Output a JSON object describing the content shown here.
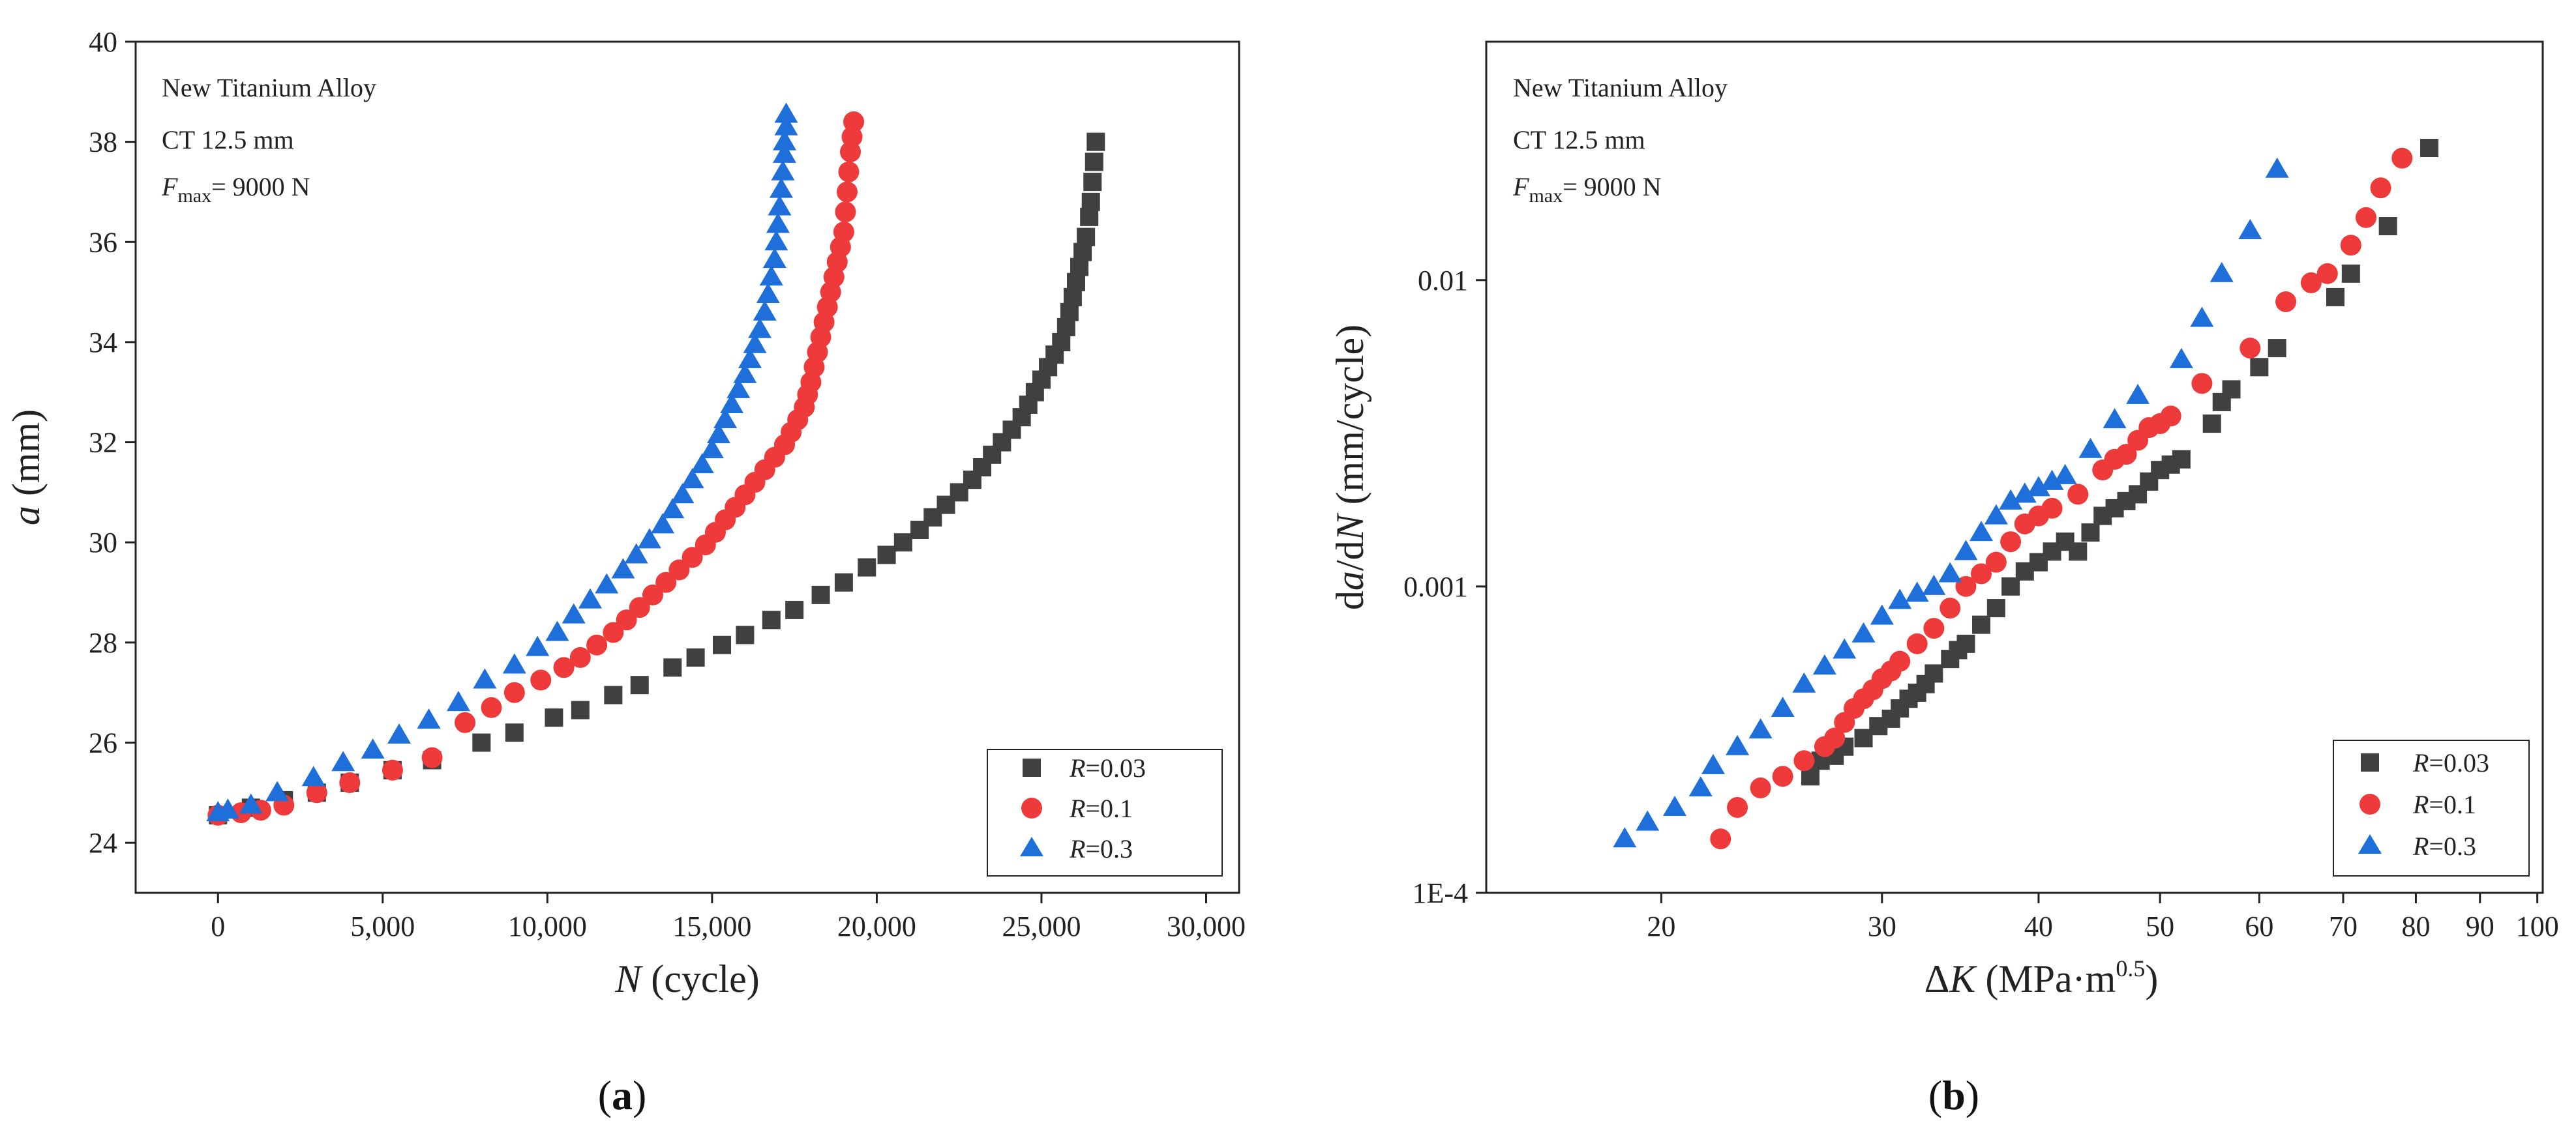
{
  "colors": {
    "r003": "#404040",
    "r01": "#ee3a3a",
    "r03": "#1e6fd9"
  },
  "chart_data": [
    {
      "type": "scatter",
      "panel_label": "a",
      "xlabel_italic": "N",
      "xlabel_rest": " (cycle)",
      "ylabel_italic": "a",
      "ylabel_rest": " (mm)",
      "xlim": [
        -2500,
        31000
      ],
      "ylim": [
        23,
        40
      ],
      "xticks": [
        0,
        5000,
        10000,
        15000,
        20000,
        25000,
        30000
      ],
      "xtick_labels": [
        "0",
        "5,000",
        "10,000",
        "15,000",
        "20,000",
        "25,000",
        "30,000"
      ],
      "yticks": [
        24,
        26,
        28,
        30,
        32,
        34,
        36,
        38,
        40
      ],
      "ytick_labels": [
        "24",
        "26",
        "28",
        "30",
        "32",
        "34",
        "36",
        "38",
        "40"
      ],
      "annotations": {
        "line1": "New Titanium Alloy",
        "line2": "CT 12.5 mm",
        "f_italic": "F",
        "f_sub": "max",
        "f_rest": "= 9000 N"
      },
      "legend_position": "bottom-right",
      "series": [
        {
          "name": "R=0.03",
          "label_italic": "R",
          "label_rest": "=0.03",
          "marker": "square",
          "color": "#404040",
          "x": [
            0,
            1000,
            2000,
            3000,
            4000,
            5300,
            6500,
            8000,
            9000,
            10200,
            11000,
            12000,
            12800,
            13800,
            14500,
            15300,
            16000,
            16800,
            17500,
            18300,
            19000,
            19700,
            20300,
            20800,
            21300,
            21700,
            22100,
            22500,
            22900,
            23200,
            23500,
            23800,
            24100,
            24400,
            24600,
            24800,
            25000,
            25200,
            25400,
            25600,
            25750,
            25850,
            25950,
            26050,
            26150,
            26250,
            26350,
            26450,
            26500,
            26550,
            26600,
            26650
          ],
          "y": [
            24.55,
            24.7,
            24.85,
            25.0,
            25.2,
            25.45,
            25.65,
            26.0,
            26.2,
            26.5,
            26.65,
            26.95,
            27.15,
            27.5,
            27.7,
            27.95,
            28.15,
            28.45,
            28.65,
            28.95,
            29.2,
            29.5,
            29.75,
            30.0,
            30.25,
            30.5,
            30.75,
            31.0,
            31.25,
            31.5,
            31.75,
            32.0,
            32.25,
            32.5,
            32.75,
            33.0,
            33.25,
            33.5,
            33.75,
            34.0,
            34.3,
            34.6,
            34.9,
            35.2,
            35.5,
            35.8,
            36.1,
            36.5,
            36.8,
            37.2,
            37.6,
            38.0
          ]
        },
        {
          "name": "R=0.1",
          "label_italic": "R",
          "label_rest": "=0.1",
          "marker": "circle",
          "color": "#ee3a3a",
          "x": [
            0,
            700,
            1300,
            2000,
            3000,
            4000,
            5300,
            6500,
            7500,
            8300,
            9000,
            9800,
            10500,
            11000,
            11500,
            12000,
            12400,
            12800,
            13200,
            13600,
            14000,
            14400,
            14800,
            15100,
            15400,
            15700,
            16000,
            16300,
            16600,
            16900,
            17200,
            17400,
            17600,
            17800,
            17900,
            18000,
            18100,
            18200,
            18300,
            18400,
            18500,
            18600,
            18700,
            18800,
            18900,
            19000,
            19050,
            19100,
            19150,
            19200,
            19250,
            19300
          ],
          "y": [
            24.55,
            24.6,
            24.65,
            24.75,
            25.0,
            25.2,
            25.45,
            25.7,
            26.4,
            26.7,
            27.0,
            27.25,
            27.5,
            27.7,
            27.95,
            28.2,
            28.45,
            28.7,
            28.95,
            29.2,
            29.45,
            29.7,
            29.95,
            30.2,
            30.45,
            30.7,
            30.95,
            31.2,
            31.45,
            31.7,
            31.95,
            32.2,
            32.45,
            32.7,
            32.95,
            33.2,
            33.5,
            33.8,
            34.1,
            34.4,
            34.7,
            35.0,
            35.3,
            35.6,
            35.9,
            36.2,
            36.6,
            37.0,
            37.4,
            37.8,
            38.1,
            38.4
          ]
        },
        {
          "name": "R=0.3",
          "label_italic": "R",
          "label_rest": "=0.3",
          "marker": "triangle",
          "color": "#1e6fd9",
          "x": [
            0,
            300,
            1000,
            1800,
            2900,
            3800,
            4700,
            5500,
            6400,
            7300,
            8100,
            9000,
            9700,
            10300,
            10800,
            11300,
            11800,
            12300,
            12700,
            13100,
            13500,
            13800,
            14100,
            14400,
            14700,
            15000,
            15200,
            15400,
            15600,
            15800,
            16000,
            16150,
            16300,
            16450,
            16600,
            16700,
            16800,
            16900,
            16950,
            17000,
            17050,
            17100,
            17150,
            17200,
            17200,
            17250,
            17250
          ],
          "y": [
            24.6,
            24.65,
            24.75,
            25.0,
            25.3,
            25.6,
            25.85,
            26.15,
            26.45,
            26.8,
            27.25,
            27.55,
            27.9,
            28.2,
            28.55,
            28.85,
            29.15,
            29.45,
            29.75,
            30.05,
            30.35,
            30.65,
            30.95,
            31.25,
            31.55,
            31.85,
            32.15,
            32.45,
            32.75,
            33.05,
            33.35,
            33.65,
            33.95,
            34.25,
            34.6,
            34.95,
            35.3,
            35.65,
            36.0,
            36.35,
            36.7,
            37.05,
            37.4,
            37.75,
            38.0,
            38.3,
            38.55
          ]
        }
      ]
    },
    {
      "type": "scatter",
      "panel_label": "b",
      "xscale": "log",
      "yscale": "log",
      "xlabel_pre": "Δ",
      "xlabel_italic": "K",
      "xlabel_unit": " (MPa·m",
      "xlabel_sup": "0.5",
      "xlabel_close": ")",
      "ylabel_parts": [
        "d",
        "a",
        "/d",
        "N",
        " (mm/cycle)"
      ],
      "xlim": [
        14.5,
        101
      ],
      "ylim": [
        0.0001,
        0.06
      ],
      "xticks": [
        20,
        30,
        40,
        50,
        60,
        70,
        80,
        90,
        100
      ],
      "xtick_labels": [
        "20",
        "30",
        "40",
        "50",
        "60",
        "70",
        "80",
        "90",
        "100"
      ],
      "yticks": [
        0.0001,
        0.001,
        0.01
      ],
      "ytick_labels": [
        "1E-4",
        "0.001",
        "0.01"
      ],
      "annotations": {
        "line1": "New Titanium Alloy",
        "line2": "CT 12.5 mm",
        "f_italic": "F",
        "f_sub": "max",
        "f_rest": "= 9000 N"
      },
      "legend_position": "bottom-right",
      "series": [
        {
          "name": "R=0.03",
          "label_italic": "R",
          "label_rest": "=0.03",
          "marker": "square",
          "color": "#404040",
          "x": [
            26.3,
            26.8,
            27.5,
            28,
            29,
            29.8,
            30.5,
            31,
            31.5,
            32,
            32.5,
            33,
            34,
            34.5,
            35,
            36,
            37,
            38,
            39,
            40,
            41,
            42,
            43,
            44,
            45,
            46,
            47,
            48,
            49,
            50,
            51,
            52,
            55,
            56,
            57,
            60,
            62,
            69,
            71,
            76,
            82
          ],
          "y": [
            0.00024,
            0.00027,
            0.00028,
            0.0003,
            0.00032,
            0.00035,
            0.00037,
            0.0004,
            0.00043,
            0.00045,
            0.00048,
            0.00052,
            0.00058,
            0.00062,
            0.00065,
            0.00075,
            0.00085,
            0.001,
            0.00112,
            0.0012,
            0.0013,
            0.0014,
            0.0013,
            0.0015,
            0.0017,
            0.0018,
            0.0019,
            0.002,
            0.0022,
            0.0024,
            0.0025,
            0.0026,
            0.0034,
            0.004,
            0.0044,
            0.0052,
            0.006,
            0.0088,
            0.0105,
            0.015,
            0.027
          ]
        },
        {
          "name": "R=0.1",
          "label_italic": "R",
          "label_rest": "=0.1",
          "marker": "circle",
          "color": "#ee3a3a",
          "x": [
            22.3,
            23,
            24,
            25,
            26,
            27,
            27.5,
            28,
            28.5,
            29,
            29.5,
            30,
            30.5,
            31,
            32,
            33,
            34,
            35,
            36,
            37,
            38,
            39,
            40,
            41,
            43,
            45,
            46,
            47,
            48,
            49,
            50,
            51,
            54,
            59,
            63,
            66,
            68,
            71,
            73,
            75,
            78
          ],
          "y": [
            0.00015,
            0.00019,
            0.00022,
            0.00024,
            0.00027,
            0.0003,
            0.00032,
            0.00036,
            0.0004,
            0.00043,
            0.00046,
            0.0005,
            0.00053,
            0.00057,
            0.00065,
            0.00073,
            0.00085,
            0.001,
            0.0011,
            0.0012,
            0.0014,
            0.0016,
            0.0017,
            0.0018,
            0.002,
            0.0024,
            0.0026,
            0.0027,
            0.003,
            0.0033,
            0.0034,
            0.0036,
            0.0046,
            0.006,
            0.0085,
            0.0098,
            0.0105,
            0.013,
            0.016,
            0.02,
            0.025
          ]
        },
        {
          "name": "R=0.3",
          "label_italic": "R",
          "label_rest": "=0.3",
          "marker": "triangle",
          "color": "#1e6fd9",
          "x": [
            18.7,
            19.5,
            20.5,
            21.5,
            22,
            23,
            24,
            25,
            26,
            27,
            28,
            29,
            30,
            31,
            32,
            33,
            34,
            35,
            36,
            37,
            38,
            39,
            40,
            41,
            42,
            44,
            46,
            48,
            52,
            54,
            56,
            59,
            62
          ],
          "y": [
            0.00015,
            0.00017,
            0.00019,
            0.00022,
            0.00026,
            0.0003,
            0.00034,
            0.0004,
            0.00048,
            0.00055,
            0.00062,
            0.0007,
            0.0008,
            0.0009,
            0.00095,
            0.001,
            0.0011,
            0.0013,
            0.0015,
            0.0017,
            0.0019,
            0.002,
            0.0021,
            0.0022,
            0.0023,
            0.0028,
            0.0035,
            0.0042,
            0.0055,
            0.0075,
            0.0105,
            0.0145,
            0.023
          ]
        }
      ]
    }
  ]
}
